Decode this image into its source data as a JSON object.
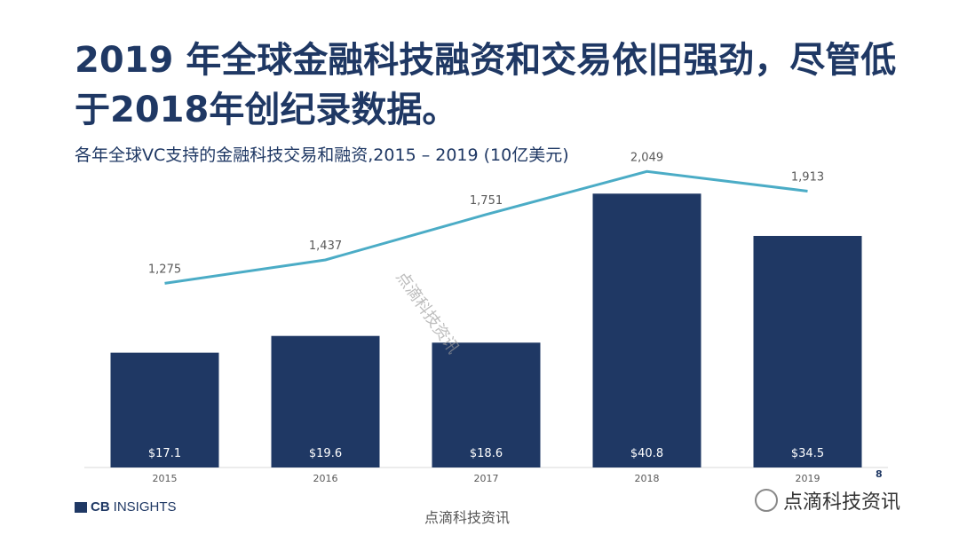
{
  "title": "2019 年全球金融科技融资和交易依旧强劲，尽管低于2018年创纪录数据。",
  "subtitle": "各年全球VC支持的金融科技交易和融资,2015 –  2019 (10亿美元)",
  "page_number": "8",
  "logo": {
    "mark": "CB",
    "text": "INSIGHTS"
  },
  "watermark": {
    "text": "点滴科技资讯",
    "icon": "wechat-icon"
  },
  "colors": {
    "bar": "#1f3864",
    "line": "#4bacc6",
    "title": "#1f3864"
  },
  "chart_data": {
    "type": "bar",
    "categories": [
      "2015",
      "2016",
      "2017",
      "2018",
      "2019"
    ],
    "series": [
      {
        "values": [
          17.1,
          19.6,
          18.6,
          40.8,
          34.5
        ],
        "labels": [
          "$17.1",
          "$19.6",
          "$18.6",
          "$40.8",
          "$34.5"
        ]
      },
      {
        "type": "line",
        "values": [
          1275,
          1437,
          1751,
          2049,
          1913
        ],
        "labels": [
          "1,275",
          "1,437",
          "1,751",
          "2,049",
          "1,913"
        ]
      }
    ],
    "ylim": [
      0,
      41.5
    ],
    "ylim_secondary": [
      0,
      2100
    ],
    "grid": false,
    "legend": "none"
  }
}
